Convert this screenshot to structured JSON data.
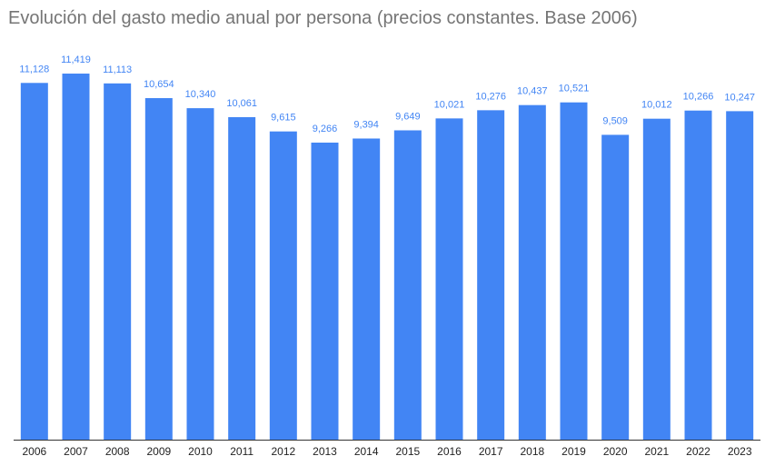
{
  "chart_data": {
    "type": "bar",
    "title": "Evolución del gasto medio anual por persona (precios constantes. Base 2006)",
    "xlabel": "",
    "ylabel": "",
    "ylim": [
      0,
      11700
    ],
    "grid": false,
    "legend": "none",
    "categories": [
      "2006",
      "2007",
      "2008",
      "2009",
      "2010",
      "2011",
      "2012",
      "2013",
      "2014",
      "2015",
      "2016",
      "2017",
      "2018",
      "2019",
      "2020",
      "2021",
      "2022",
      "2023"
    ],
    "values": [
      11128,
      11419,
      11113,
      10654,
      10340,
      10061,
      9615,
      9266,
      9394,
      9649,
      10021,
      10276,
      10437,
      10521,
      9509,
      10012,
      10266,
      10247
    ],
    "value_labels": [
      "11,128",
      "11,419",
      "11,113",
      "10,654",
      "10,340",
      "10,061",
      "9,615",
      "9,266",
      "9,394",
      "9,649",
      "10,021",
      "10,276",
      "10,437",
      "10,521",
      "9,509",
      "10,012",
      "10,266",
      "10,247"
    ],
    "colors": {
      "bar": "#4285f4",
      "label": "#4285f4",
      "axis": "#333333",
      "title": "#757575"
    }
  }
}
